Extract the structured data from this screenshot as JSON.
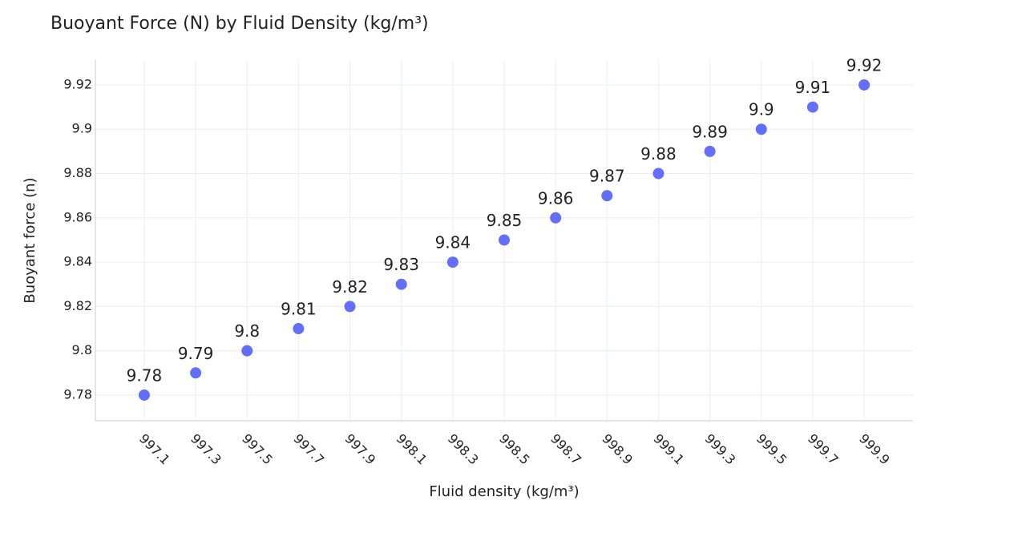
{
  "chart_data": {
    "type": "scatter",
    "title": "Buoyant Force (N) by Fluid Density (kg/m³)",
    "x_label": "Fluid density (kg/m³)",
    "y_label": "Buoyant force (n)",
    "x": [
      997.1,
      997.3,
      997.5,
      997.7,
      997.9,
      998.1,
      998.3,
      998.5,
      998.7,
      998.9,
      999.1,
      999.3,
      999.5,
      999.7,
      999.9
    ],
    "values": [
      9.78,
      9.79,
      9.8,
      9.81,
      9.82,
      9.83,
      9.84,
      9.85,
      9.86,
      9.87,
      9.88,
      9.89,
      9.9,
      9.91,
      9.92
    ],
    "color": "#636efa",
    "xlim": [
      996.91,
      1000.09
    ],
    "xticks": [
      997.1,
      997.3,
      997.5,
      997.7,
      997.9,
      998.1,
      998.3,
      998.5,
      998.7,
      998.9,
      999.1,
      999.3,
      999.5,
      999.7,
      999.9
    ],
    "ylim": [
      9.7684,
      9.9312
    ],
    "yticks": [
      9.78,
      9.8,
      9.82,
      9.84,
      9.86,
      9.88,
      9.9,
      9.92
    ],
    "grid": true
  }
}
